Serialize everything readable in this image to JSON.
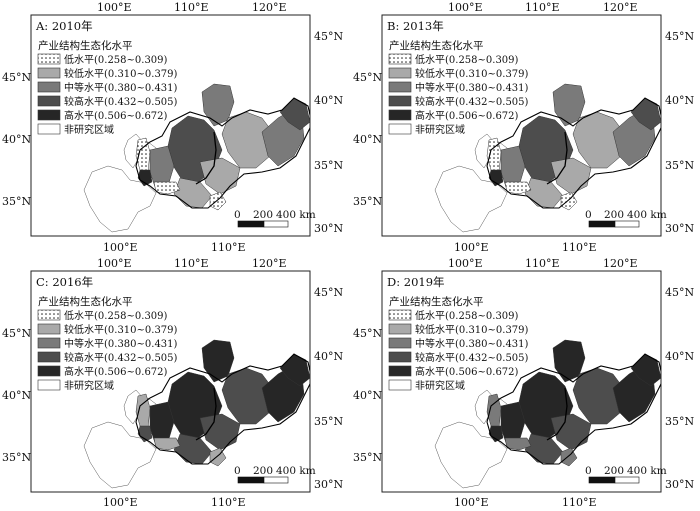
{
  "map_panels": [
    {
      "key": "A",
      "title": "A: 2010年"
    },
    {
      "key": "B",
      "title": "B: 2013年"
    },
    {
      "key": "C",
      "title": "C: 2016年"
    },
    {
      "key": "D",
      "title": "D: 2019年"
    }
  ],
  "axis_labels": {
    "top": [
      "100°E",
      "110°E",
      "120°E"
    ],
    "bottom": [
      "100°E",
      "110°E"
    ],
    "left": [
      "45°N",
      "40°N",
      "35°N"
    ],
    "right": [
      "45°N",
      "40°N",
      "35°N",
      "30°N"
    ]
  },
  "legend": {
    "title": "产业结构生态化水平",
    "items": [
      {
        "label": "低水平(0.258~0.309)",
        "color": "#ffffff",
        "pattern": "dots"
      },
      {
        "label": "较低水平(0.310~0.379)",
        "color": "#a9a9a9",
        "pattern": "solid"
      },
      {
        "label": "中等水平(0.380~0.431)",
        "color": "#7a7a7a",
        "pattern": "solid"
      },
      {
        "label": "较高水平(0.432~0.505)",
        "color": "#4d4d4d",
        "pattern": "solid"
      },
      {
        "label": "高水平(0.506~0.672)",
        "color": "#262626",
        "pattern": "solid"
      },
      {
        "label": "非研究区域",
        "color": "#ffffff",
        "pattern": "outline"
      }
    ]
  },
  "scale_bar": {
    "labels": [
      "0",
      "200",
      "400 km"
    ]
  }
}
